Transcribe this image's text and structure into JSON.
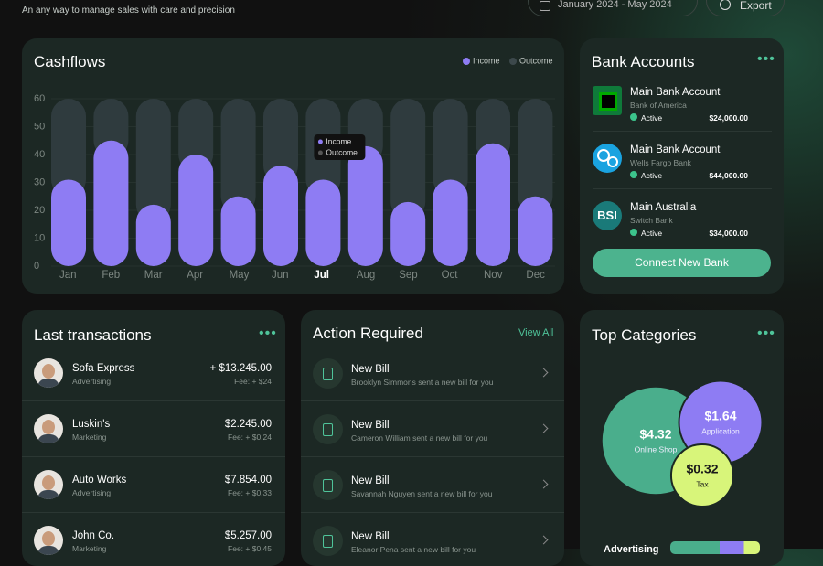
{
  "header": {
    "subtitle": "An any way to manage sales with care and  precision",
    "date_range": "January 2024 - May 2024",
    "export": "Export"
  },
  "chart_data": [
    {
      "type": "bar",
      "stacked": true,
      "title": "Cashflows",
      "categories": [
        "Jan",
        "Feb",
        "Mar",
        "Apr",
        "May",
        "Jun",
        "Jul",
        "Aug",
        "Sep",
        "Oct",
        "Nov",
        "Dec"
      ],
      "series": [
        {
          "name": "Income",
          "color": "#8e7cf3",
          "values": [
            31,
            45,
            22,
            40,
            25,
            36,
            31,
            43,
            23,
            31,
            44,
            25
          ]
        },
        {
          "name": "Outcome",
          "color": "#2f3b3e",
          "values": [
            29,
            15,
            38,
            20,
            35,
            24,
            29,
            17,
            37,
            29,
            16,
            35
          ]
        }
      ],
      "ylim": [
        0,
        60
      ],
      "yticks": [
        0,
        10,
        20,
        30,
        40,
        50,
        60
      ],
      "grid": true,
      "legend": "top-right",
      "highlighted": 6
    },
    {
      "type": "bubble",
      "title": "Top Categories",
      "categories": [
        "Online Shop",
        "Application",
        "Tax"
      ],
      "values": [
        4.32,
        1.64,
        0.32
      ],
      "value_labels": [
        "$4.32",
        "$1.64",
        "$0.32"
      ],
      "colors": [
        "#4aae8c",
        "#8e7cf3",
        "#d8f57a"
      ]
    }
  ],
  "bank_accounts": {
    "title": "Bank Accounts",
    "button": "Connect New Bank",
    "items": [
      {
        "name": "Main Bank Account",
        "bank": "Bank of America",
        "status": "Active",
        "balance": "$24,000.00"
      },
      {
        "name": "Main Bank Account",
        "bank": "Wells Fargo Bank",
        "status": "Active",
        "balance": "$44,000.00"
      },
      {
        "name": "Main Australia",
        "bank": "Switch Bank",
        "status": "Active",
        "balance": "$34,000.00",
        "logo": "BSI"
      }
    ]
  },
  "transactions": {
    "title": "Last transactions",
    "items": [
      {
        "name": "Sofa Express",
        "category": "Advertising",
        "amount": "+ $13.245.00",
        "fee": "Fee: + $24"
      },
      {
        "name": "Luskin's",
        "category": "Marketing",
        "amount": "$2.245.00",
        "fee": "Fee: + $0.24"
      },
      {
        "name": "Auto Works",
        "category": "Advertising",
        "amount": "$7.854.00",
        "fee": "Fee: + $0.33"
      },
      {
        "name": "John Co.",
        "category": "Marketing",
        "amount": "$5.257.00",
        "fee": "Fee: + $0.45"
      }
    ]
  },
  "actions": {
    "title": "Action Required",
    "link": "View All",
    "items": [
      {
        "title": "New Bill",
        "description": "Brooklyn Simmons sent a new bill for you"
      },
      {
        "title": "New Bill",
        "description": "Cameron William sent a new bill for you"
      },
      {
        "title": "New Bill",
        "description": "Savannah Nguyen sent a new bill for you"
      },
      {
        "title": "New Bill",
        "description": "Eleanor Pena sent a new bill for you"
      }
    ]
  },
  "breakdown": {
    "label": "Advertising"
  }
}
